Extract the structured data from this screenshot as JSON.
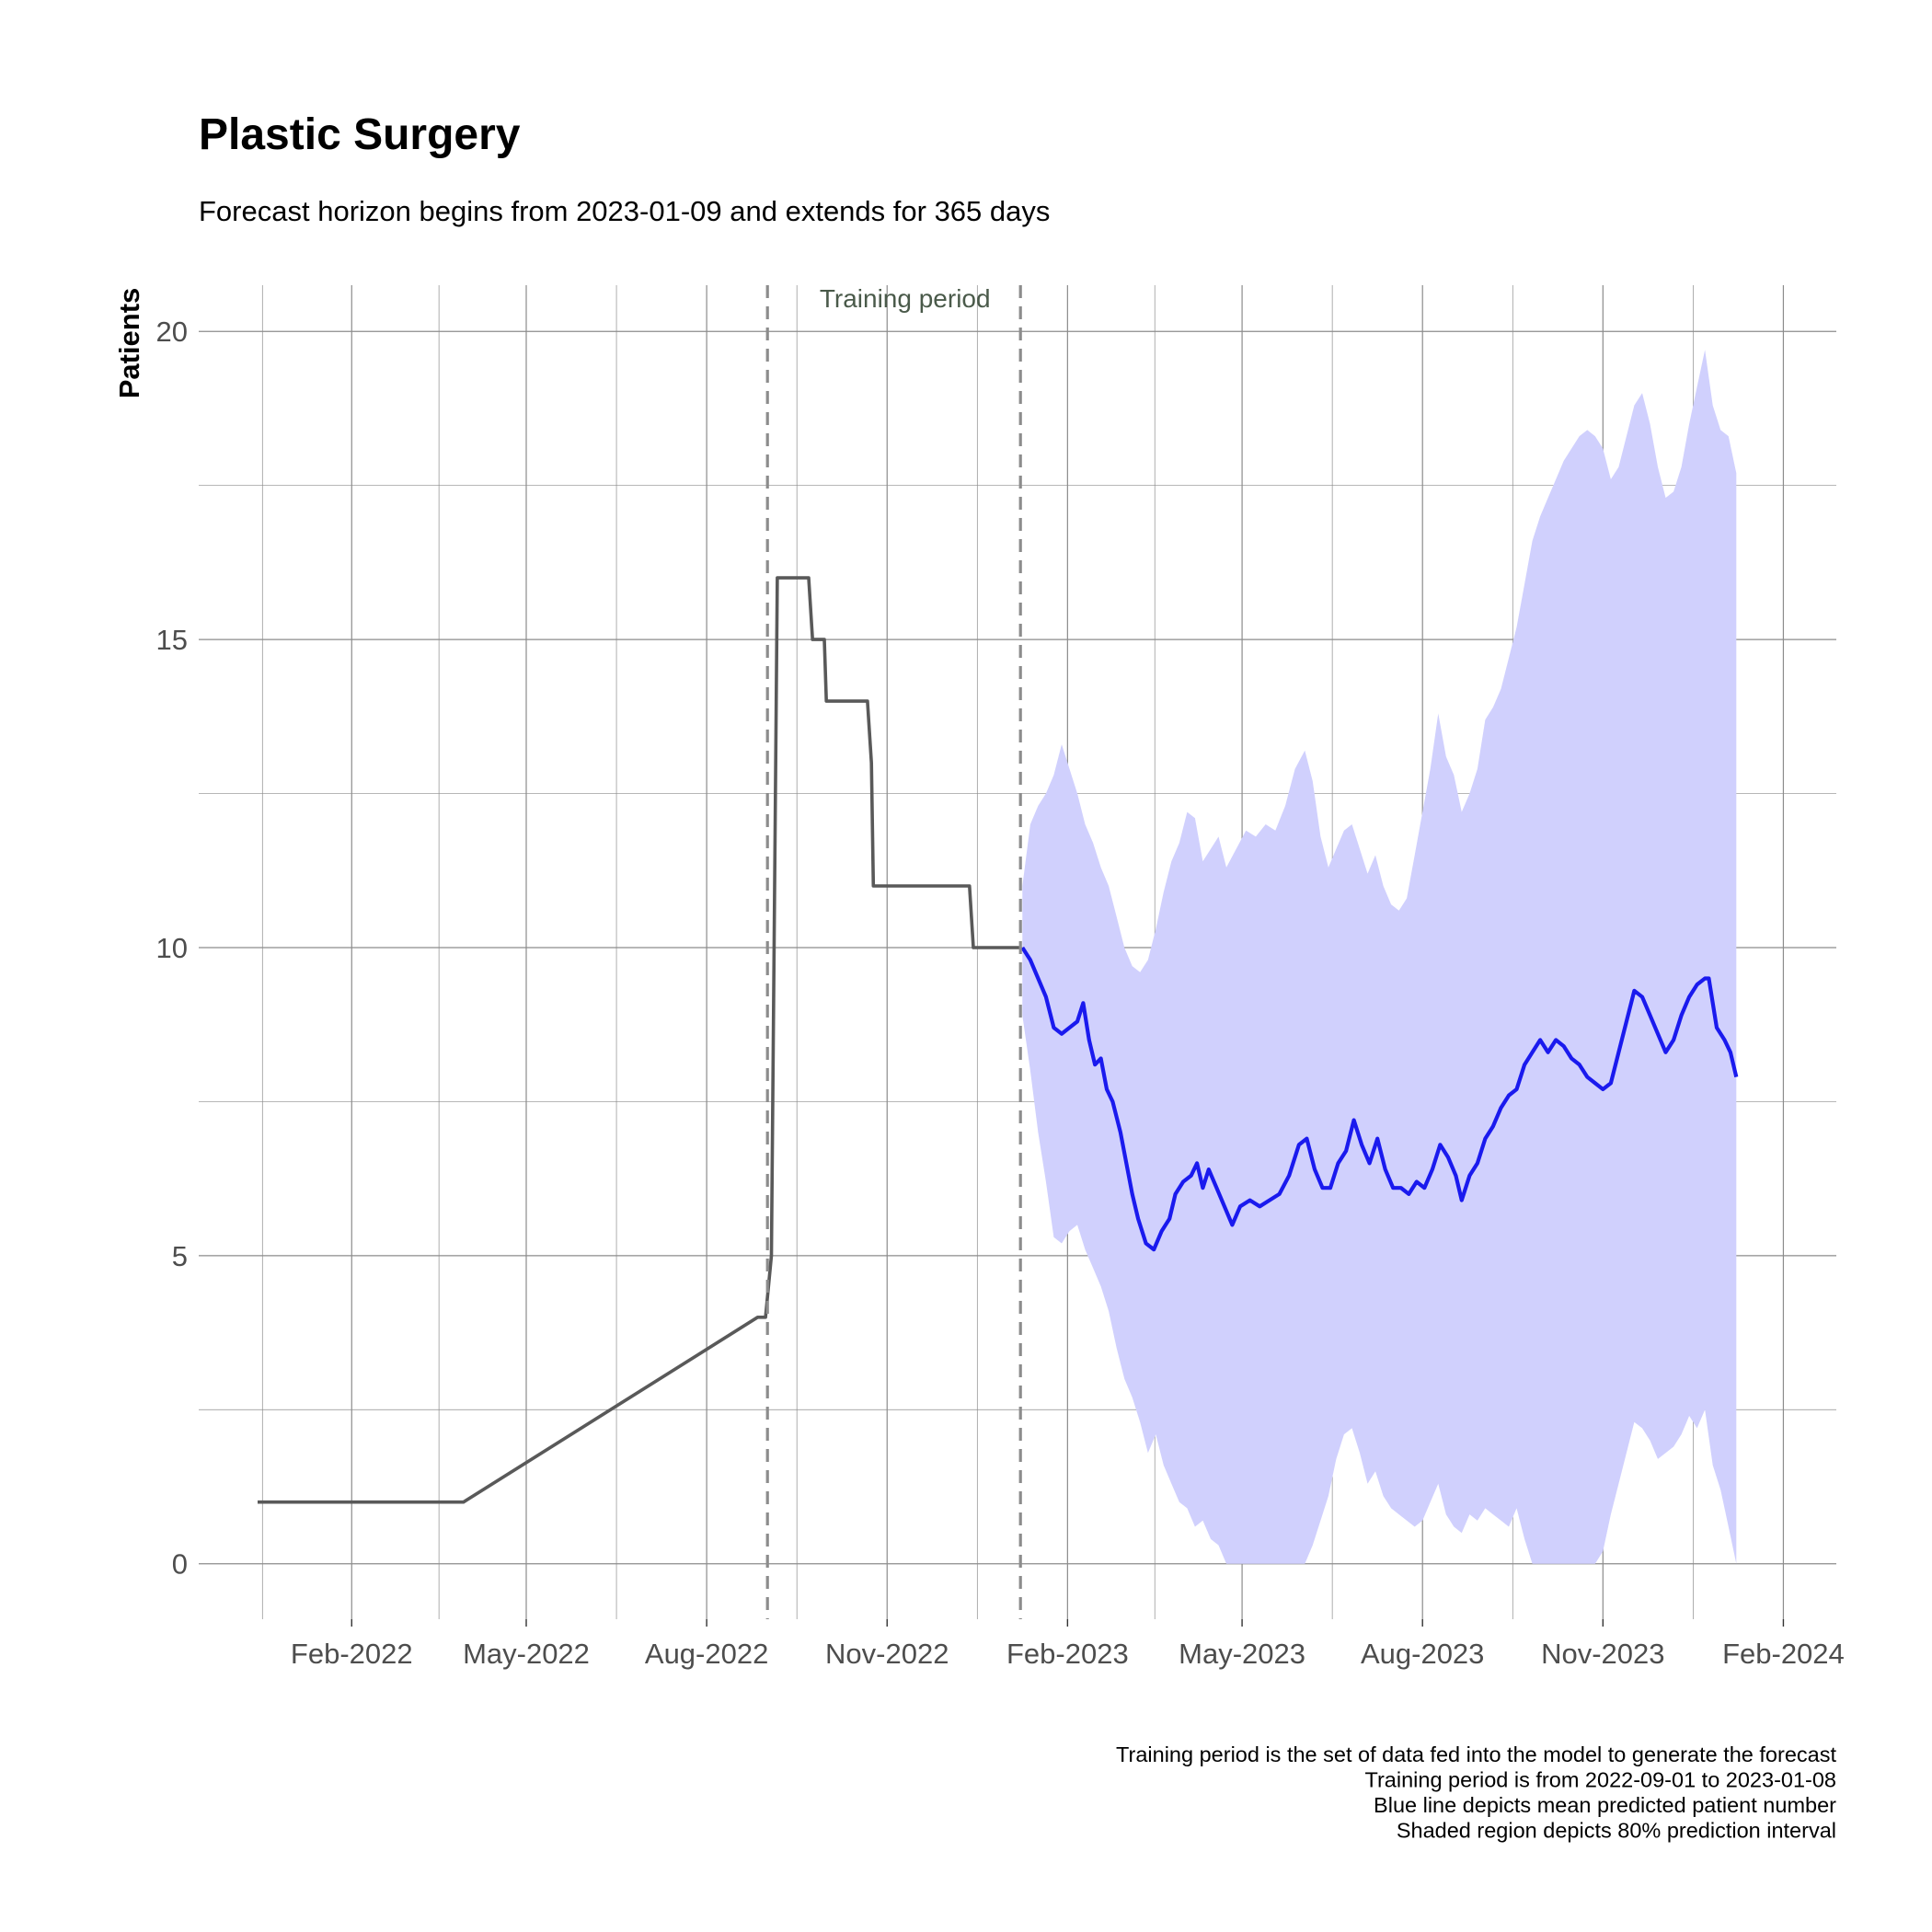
{
  "chart_data": {
    "type": "line",
    "title": "Plastic Surgery",
    "subtitle": "Forecast horizon begins from 2023-01-09 and extends for 365 days",
    "ylabel": "Patients",
    "xlabel": "",
    "xlim": [
      "2021-11-15",
      "2024-02-28"
    ],
    "ylim": [
      -0.9,
      20.75
    ],
    "y_ticks": [
      0,
      5,
      10,
      15,
      20
    ],
    "x_ticks": [
      {
        "date": "2022-02-01",
        "label": "Feb-2022"
      },
      {
        "date": "2022-05-01",
        "label": "May-2022"
      },
      {
        "date": "2022-08-01",
        "label": "Aug-2022"
      },
      {
        "date": "2022-11-01",
        "label": "Nov-2022"
      },
      {
        "date": "2023-02-01",
        "label": "Feb-2023"
      },
      {
        "date": "2023-05-01",
        "label": "May-2023"
      },
      {
        "date": "2023-08-01",
        "label": "Aug-2023"
      },
      {
        "date": "2023-11-01",
        "label": "Nov-2023"
      },
      {
        "date": "2024-02-01",
        "label": "Feb-2024"
      }
    ],
    "grid": true,
    "training_period": {
      "start": "2022-09-01",
      "end": "2023-01-08",
      "label": "Training period"
    },
    "observed": [
      [
        "2021-12-15",
        1
      ],
      [
        "2022-03-30",
        1
      ],
      [
        "2022-08-27",
        4
      ],
      [
        "2022-08-31",
        4
      ],
      [
        "2022-09-03",
        5
      ],
      [
        "2022-09-06",
        16
      ],
      [
        "2022-09-22",
        16
      ],
      [
        "2022-09-24",
        15
      ],
      [
        "2022-09-30",
        15
      ],
      [
        "2022-10-01",
        14
      ],
      [
        "2022-10-22",
        14
      ],
      [
        "2022-10-24",
        13
      ],
      [
        "2022-10-25",
        11
      ],
      [
        "2022-12-13",
        11
      ],
      [
        "2022-12-15",
        10
      ],
      [
        "2023-01-08",
        10
      ]
    ],
    "forecast_mean": [
      [
        "2023-01-09",
        10.0
      ],
      [
        "2023-01-13",
        9.8
      ],
      [
        "2023-01-17",
        9.5
      ],
      [
        "2023-01-21",
        9.2
      ],
      [
        "2023-01-25",
        8.7
      ],
      [
        "2023-01-29",
        8.6
      ],
      [
        "2023-02-02",
        8.7
      ],
      [
        "2023-02-06",
        8.8
      ],
      [
        "2023-02-09",
        9.1
      ],
      [
        "2023-02-12",
        8.5
      ],
      [
        "2023-02-15",
        8.1
      ],
      [
        "2023-02-18",
        8.2
      ],
      [
        "2023-02-21",
        7.7
      ],
      [
        "2023-02-24",
        7.5
      ],
      [
        "2023-02-28",
        7.0
      ],
      [
        "2023-03-03",
        6.5
      ],
      [
        "2023-03-06",
        6.0
      ],
      [
        "2023-03-09",
        5.6
      ],
      [
        "2023-03-13",
        5.2
      ],
      [
        "2023-03-17",
        5.1
      ],
      [
        "2023-03-21",
        5.4
      ],
      [
        "2023-03-25",
        5.6
      ],
      [
        "2023-03-28",
        6.0
      ],
      [
        "2023-04-01",
        6.2
      ],
      [
        "2023-04-05",
        6.3
      ],
      [
        "2023-04-08",
        6.5
      ],
      [
        "2023-04-11",
        6.1
      ],
      [
        "2023-04-14",
        6.4
      ],
      [
        "2023-04-18",
        6.1
      ],
      [
        "2023-04-22",
        5.8
      ],
      [
        "2023-04-26",
        5.5
      ],
      [
        "2023-04-30",
        5.8
      ],
      [
        "2023-05-05",
        5.9
      ],
      [
        "2023-05-10",
        5.8
      ],
      [
        "2023-05-15",
        5.9
      ],
      [
        "2023-05-20",
        6.0
      ],
      [
        "2023-05-25",
        6.3
      ],
      [
        "2023-05-30",
        6.8
      ],
      [
        "2023-06-03",
        6.9
      ],
      [
        "2023-06-07",
        6.4
      ],
      [
        "2023-06-11",
        6.1
      ],
      [
        "2023-06-15",
        6.1
      ],
      [
        "2023-06-19",
        6.5
      ],
      [
        "2023-06-23",
        6.7
      ],
      [
        "2023-06-27",
        7.2
      ],
      [
        "2023-07-01",
        6.8
      ],
      [
        "2023-07-05",
        6.5
      ],
      [
        "2023-07-09",
        6.9
      ],
      [
        "2023-07-13",
        6.4
      ],
      [
        "2023-07-17",
        6.1
      ],
      [
        "2023-07-21",
        6.1
      ],
      [
        "2023-07-25",
        6.0
      ],
      [
        "2023-07-29",
        6.2
      ],
      [
        "2023-08-02",
        6.1
      ],
      [
        "2023-08-06",
        6.4
      ],
      [
        "2023-08-10",
        6.8
      ],
      [
        "2023-08-14",
        6.6
      ],
      [
        "2023-08-18",
        6.3
      ],
      [
        "2023-08-21",
        5.9
      ],
      [
        "2023-08-25",
        6.3
      ],
      [
        "2023-08-29",
        6.5
      ],
      [
        "2023-09-02",
        6.9
      ],
      [
        "2023-09-06",
        7.1
      ],
      [
        "2023-09-10",
        7.4
      ],
      [
        "2023-09-14",
        7.6
      ],
      [
        "2023-09-18",
        7.7
      ],
      [
        "2023-09-22",
        8.1
      ],
      [
        "2023-09-26",
        8.3
      ],
      [
        "2023-09-30",
        8.5
      ],
      [
        "2023-10-04",
        8.3
      ],
      [
        "2023-10-08",
        8.5
      ],
      [
        "2023-10-12",
        8.4
      ],
      [
        "2023-10-16",
        8.2
      ],
      [
        "2023-10-20",
        8.1
      ],
      [
        "2023-10-24",
        7.9
      ],
      [
        "2023-10-28",
        7.8
      ],
      [
        "2023-11-01",
        7.7
      ],
      [
        "2023-11-05",
        7.8
      ],
      [
        "2023-11-09",
        8.3
      ],
      [
        "2023-11-13",
        8.8
      ],
      [
        "2023-11-17",
        9.3
      ],
      [
        "2023-11-21",
        9.2
      ],
      [
        "2023-11-25",
        8.9
      ],
      [
        "2023-11-29",
        8.6
      ],
      [
        "2023-12-03",
        8.3
      ],
      [
        "2023-12-07",
        8.5
      ],
      [
        "2023-12-11",
        8.9
      ],
      [
        "2023-12-15",
        9.2
      ],
      [
        "2023-12-19",
        9.4
      ],
      [
        "2023-12-23",
        9.5
      ],
      [
        "2023-12-25",
        9.5
      ],
      [
        "2023-12-29",
        8.7
      ],
      [
        "2024-01-02",
        8.5
      ],
      [
        "2024-01-05",
        8.3
      ],
      [
        "2024-01-08",
        7.9
      ]
    ],
    "forecast_interval_80": [
      [
        "2023-01-09",
        8.9,
        11.0
      ],
      [
        "2023-01-13",
        8.0,
        12.0
      ],
      [
        "2023-01-17",
        7.0,
        12.3
      ],
      [
        "2023-01-21",
        6.2,
        12.5
      ],
      [
        "2023-01-25",
        5.3,
        12.8
      ],
      [
        "2023-01-29",
        5.2,
        13.3
      ],
      [
        "2023-02-02",
        5.4,
        12.9
      ],
      [
        "2023-02-06",
        5.5,
        12.5
      ],
      [
        "2023-02-10",
        5.1,
        12.0
      ],
      [
        "2023-02-14",
        4.8,
        11.7
      ],
      [
        "2023-02-18",
        4.5,
        11.3
      ],
      [
        "2023-02-22",
        4.1,
        11.0
      ],
      [
        "2023-02-26",
        3.5,
        10.5
      ],
      [
        "2023-03-02",
        3.0,
        10.0
      ],
      [
        "2023-03-06",
        2.7,
        9.7
      ],
      [
        "2023-03-10",
        2.3,
        9.6
      ],
      [
        "2023-03-14",
        1.8,
        9.8
      ],
      [
        "2023-03-18",
        2.1,
        10.3
      ],
      [
        "2023-03-22",
        1.6,
        10.9
      ],
      [
        "2023-03-26",
        1.3,
        11.4
      ],
      [
        "2023-03-30",
        1.0,
        11.7
      ],
      [
        "2023-04-03",
        0.9,
        12.2
      ],
      [
        "2023-04-07",
        0.6,
        12.1
      ],
      [
        "2023-04-11",
        0.7,
        11.4
      ],
      [
        "2023-04-15",
        0.4,
        11.6
      ],
      [
        "2023-04-19",
        0.3,
        11.8
      ],
      [
        "2023-04-23",
        0.0,
        11.3
      ],
      [
        "2023-04-28",
        0.0,
        11.6
      ],
      [
        "2023-05-03",
        0.0,
        11.9
      ],
      [
        "2023-05-08",
        0.0,
        11.8
      ],
      [
        "2023-05-13",
        0.0,
        12.0
      ],
      [
        "2023-05-18",
        0.0,
        11.9
      ],
      [
        "2023-05-23",
        0.0,
        12.3
      ],
      [
        "2023-05-28",
        0.0,
        12.9
      ],
      [
        "2023-06-02",
        0.0,
        13.2
      ],
      [
        "2023-06-06",
        0.3,
        12.7
      ],
      [
        "2023-06-10",
        0.7,
        11.8
      ],
      [
        "2023-06-14",
        1.1,
        11.3
      ],
      [
        "2023-06-18",
        1.7,
        11.6
      ],
      [
        "2023-06-22",
        2.1,
        11.9
      ],
      [
        "2023-06-26",
        2.2,
        12.0
      ],
      [
        "2023-06-30",
        1.8,
        11.6
      ],
      [
        "2023-07-04",
        1.3,
        11.2
      ],
      [
        "2023-07-08",
        1.5,
        11.5
      ],
      [
        "2023-07-12",
        1.1,
        11.0
      ],
      [
        "2023-07-16",
        0.9,
        10.7
      ],
      [
        "2023-07-20",
        0.8,
        10.6
      ],
      [
        "2023-07-24",
        0.7,
        10.8
      ],
      [
        "2023-07-28",
        0.6,
        11.5
      ],
      [
        "2023-08-01",
        0.7,
        12.2
      ],
      [
        "2023-08-05",
        1.0,
        12.9
      ],
      [
        "2023-08-09",
        1.3,
        13.8
      ],
      [
        "2023-08-13",
        0.8,
        13.1
      ],
      [
        "2023-08-17",
        0.6,
        12.8
      ],
      [
        "2023-08-21",
        0.5,
        12.2
      ],
      [
        "2023-08-25",
        0.8,
        12.5
      ],
      [
        "2023-08-29",
        0.7,
        12.9
      ],
      [
        "2023-09-02",
        0.9,
        13.7
      ],
      [
        "2023-09-06",
        0.8,
        13.9
      ],
      [
        "2023-09-10",
        0.7,
        14.2
      ],
      [
        "2023-09-14",
        0.6,
        14.7
      ],
      [
        "2023-09-18",
        0.9,
        15.2
      ],
      [
        "2023-09-22",
        0.4,
        15.9
      ],
      [
        "2023-09-26",
        0.0,
        16.6
      ],
      [
        "2023-09-30",
        0.0,
        17.0
      ],
      [
        "2023-10-04",
        0.0,
        17.3
      ],
      [
        "2023-10-08",
        0.0,
        17.6
      ],
      [
        "2023-10-12",
        0.0,
        17.9
      ],
      [
        "2023-10-16",
        0.0,
        18.1
      ],
      [
        "2023-10-20",
        0.0,
        18.3
      ],
      [
        "2023-10-24",
        0.0,
        18.4
      ],
      [
        "2023-10-28",
        0.0,
        18.3
      ],
      [
        "2023-11-01",
        0.2,
        18.1
      ],
      [
        "2023-11-05",
        0.8,
        17.6
      ],
      [
        "2023-11-09",
        1.3,
        17.8
      ],
      [
        "2023-11-13",
        1.8,
        18.3
      ],
      [
        "2023-11-17",
        2.3,
        18.8
      ],
      [
        "2023-11-21",
        2.2,
        19.0
      ],
      [
        "2023-11-25",
        2.0,
        18.5
      ],
      [
        "2023-11-29",
        1.7,
        17.8
      ],
      [
        "2023-12-03",
        1.8,
        17.3
      ],
      [
        "2023-12-07",
        1.9,
        17.4
      ],
      [
        "2023-12-11",
        2.1,
        17.8
      ],
      [
        "2023-12-15",
        2.4,
        18.5
      ],
      [
        "2023-12-19",
        2.2,
        19.1
      ],
      [
        "2023-12-23",
        2.5,
        19.7
      ],
      [
        "2023-12-27",
        1.6,
        18.8
      ],
      [
        "2023-12-31",
        1.2,
        18.4
      ],
      [
        "2024-01-04",
        0.6,
        18.3
      ],
      [
        "2024-01-08",
        0.0,
        17.7
      ]
    ],
    "caption": [
      "Training period is the set of data fed into the model to generate the forecast",
      "Training period is from 2022-09-01 to 2023-01-08",
      "Blue line depicts mean predicted patient number",
      "Shaded region depicts 80% prediction interval"
    ],
    "colors": {
      "observed": "#595959",
      "forecast": "#1a1aee",
      "interval": "#d0d0fd",
      "grid": "#8c8c8c",
      "training_lines": "#8c8c8c"
    }
  }
}
